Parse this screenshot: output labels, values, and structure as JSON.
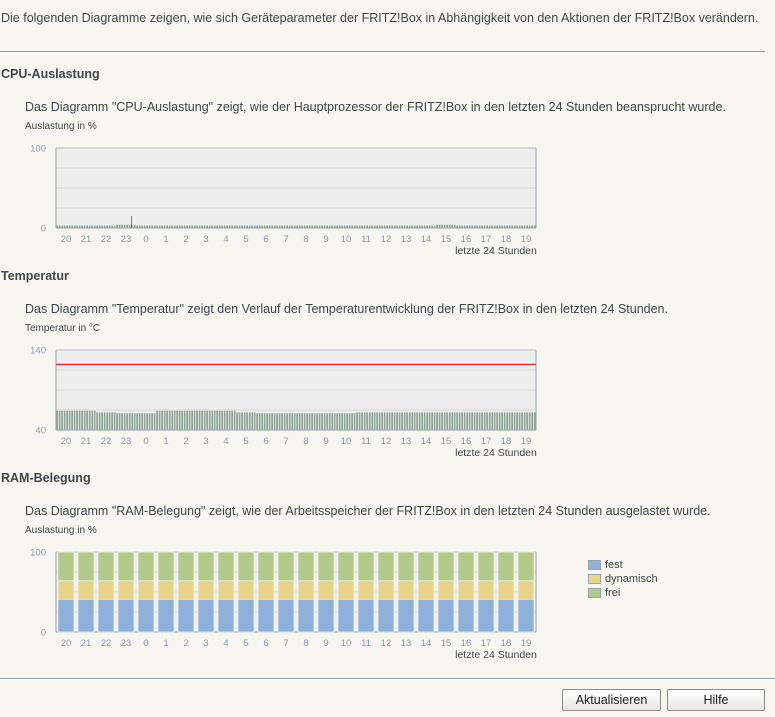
{
  "intro": "Die folgenden Diagramme zeigen, wie sich Geräteparameter der FRITZ!Box in Abhängigkeit von den Aktionen der FRITZ!Box verändern.",
  "xaxis": {
    "ticks": [
      "20",
      "21",
      "22",
      "23",
      "0",
      "1",
      "2",
      "3",
      "4",
      "5",
      "6",
      "7",
      "8",
      "9",
      "10",
      "11",
      "12",
      "13",
      "14",
      "15",
      "16",
      "17",
      "18",
      "19"
    ],
    "title": "letzte 24 Stunden"
  },
  "cpu": {
    "title": "CPU-Auslastung",
    "description": "Das Diagramm \"CPU-Auslastung\" zeigt, wie der Hauptprozessor der FRITZ!Box in den letzten 24 Stunden beansprucht wurde.",
    "ylabel": "Auslastung in %"
  },
  "temperature": {
    "title": "Temperatur",
    "description": "Das Diagramm \"Temperatur\" zeigt den Verlauf der Temperaturentwicklung der FRITZ!Box in den letzten 24 Stunden.",
    "ylabel": "Temperatur in °C"
  },
  "ram": {
    "title": "RAM-Belegung",
    "description": "Das Diagramm \"RAM-Belegung\" zeigt, wie der Arbeitsspeicher der FRITZ!Box in den letzten 24 Stunden ausgelastet wurde.",
    "ylabel": "Auslastung in %",
    "legend": [
      {
        "label": "fest",
        "color": "#8fb0db"
      },
      {
        "label": "dynamisch",
        "color": "#e8d38a"
      },
      {
        "label": "frei",
        "color": "#b3c98a"
      }
    ]
  },
  "buttons": {
    "refresh": "Aktualisieren",
    "help": "Hilfe"
  },
  "chart_data": [
    {
      "type": "bar",
      "title": "CPU-Auslastung",
      "ylabel": "Auslastung in %",
      "xlabel": "letzte 24 Stunden",
      "ylim": [
        0,
        100
      ],
      "y_ticks": [
        0,
        100
      ],
      "categories": [
        "20",
        "21",
        "22",
        "23",
        "0",
        "1",
        "2",
        "3",
        "4",
        "5",
        "6",
        "7",
        "8",
        "9",
        "10",
        "11",
        "12",
        "13",
        "14",
        "15",
        "16",
        "17",
        "18",
        "19"
      ],
      "values": [
        3,
        3,
        3,
        4,
        3,
        3,
        3,
        3,
        3,
        3,
        3,
        3,
        3,
        3,
        3,
        3,
        3,
        3,
        3,
        4,
        3,
        3,
        3,
        3
      ],
      "peak": {
        "category": "23",
        "value": 15
      },
      "color": "#8fa596"
    },
    {
      "type": "bar",
      "title": "Temperatur",
      "ylabel": "Temperatur in °C",
      "xlabel": "letzte 24 Stunden",
      "ylim": [
        40,
        140
      ],
      "y_ticks": [
        40,
        140
      ],
      "categories": [
        "20",
        "21",
        "22",
        "23",
        "0",
        "1",
        "2",
        "3",
        "4",
        "5",
        "6",
        "7",
        "8",
        "9",
        "10",
        "11",
        "12",
        "13",
        "14",
        "15",
        "16",
        "17",
        "18",
        "19"
      ],
      "values": [
        64,
        64,
        62,
        61,
        61,
        64,
        64,
        64,
        64,
        62,
        61,
        61,
        61,
        61,
        61,
        62,
        62,
        62,
        62,
        62,
        62,
        62,
        62,
        62
      ],
      "threshold": {
        "value": 122,
        "color": "#d9312a"
      },
      "color": "#8fa596"
    },
    {
      "type": "bar",
      "stacked": true,
      "title": "RAM-Belegung",
      "ylabel": "Auslastung in %",
      "xlabel": "letzte 24 Stunden",
      "ylim": [
        0,
        100
      ],
      "y_ticks": [
        0,
        100
      ],
      "legend": "right",
      "categories": [
        "20",
        "21",
        "22",
        "23",
        "0",
        "1",
        "2",
        "3",
        "4",
        "5",
        "6",
        "7",
        "8",
        "9",
        "10",
        "11",
        "12",
        "13",
        "14",
        "15",
        "16",
        "17",
        "18",
        "19"
      ],
      "series": [
        {
          "name": "fest",
          "color": "#8fb0db",
          "values": [
            41,
            41,
            41,
            41,
            41,
            41,
            41,
            41,
            41,
            41,
            41,
            41,
            41,
            41,
            41,
            41,
            41,
            41,
            41,
            41,
            41,
            41,
            41,
            41
          ]
        },
        {
          "name": "dynamisch",
          "color": "#e8d38a",
          "values": [
            23,
            23,
            23,
            23,
            23,
            23,
            23,
            23,
            23,
            23,
            23,
            23,
            23,
            23,
            23,
            23,
            23,
            23,
            23,
            23,
            23,
            23,
            23,
            23
          ]
        },
        {
          "name": "frei",
          "color": "#b3c98a",
          "values": [
            36,
            36,
            36,
            36,
            36,
            36,
            36,
            36,
            36,
            36,
            36,
            36,
            36,
            36,
            36,
            36,
            36,
            36,
            36,
            36,
            36,
            36,
            36,
            36
          ]
        }
      ]
    }
  ]
}
